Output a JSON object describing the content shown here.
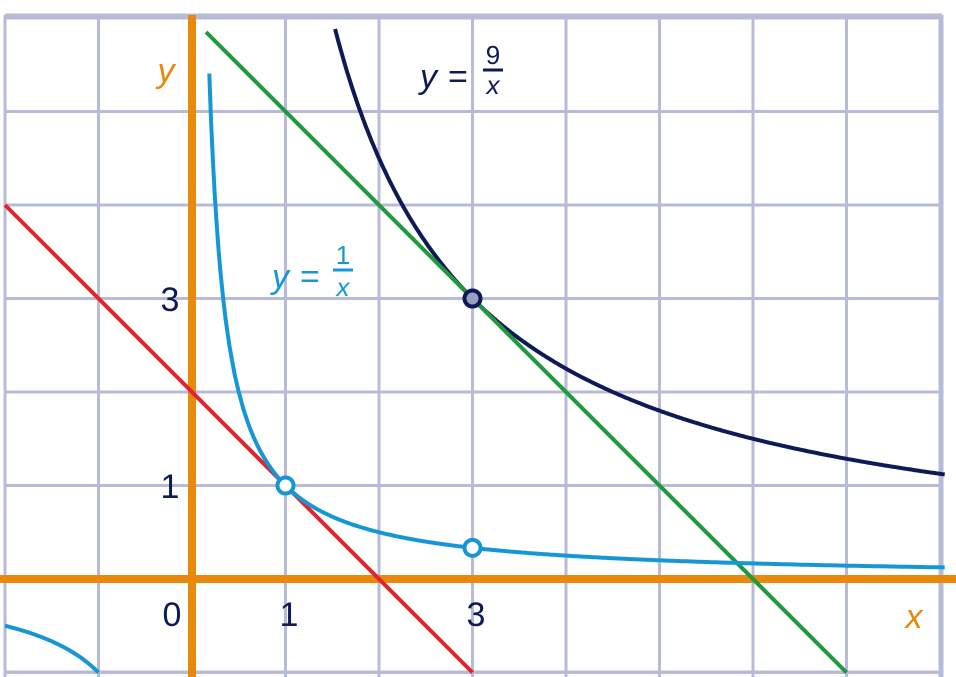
{
  "axes": {
    "x_label": "x",
    "y_label": "y",
    "color": "#e8890c"
  },
  "ticks": {
    "origin": "0",
    "x": [
      "1",
      "3"
    ],
    "y": [
      "1",
      "3"
    ]
  },
  "curves": {
    "inverse_1": {
      "label": {
        "lhs": "y",
        "eq": "=",
        "num": "1",
        "den": "x"
      },
      "color": "#1796d6"
    },
    "inverse_9": {
      "label": {
        "lhs": "y",
        "eq": "=",
        "num": "9",
        "den": "x"
      },
      "color": "#0d1a55"
    },
    "tangent_green": {
      "color": "#1f9a3c"
    },
    "tangent_red": {
      "color": "#e0262d"
    }
  },
  "grid_color": "#b8bbd8",
  "label_color": "#0d1a55"
}
